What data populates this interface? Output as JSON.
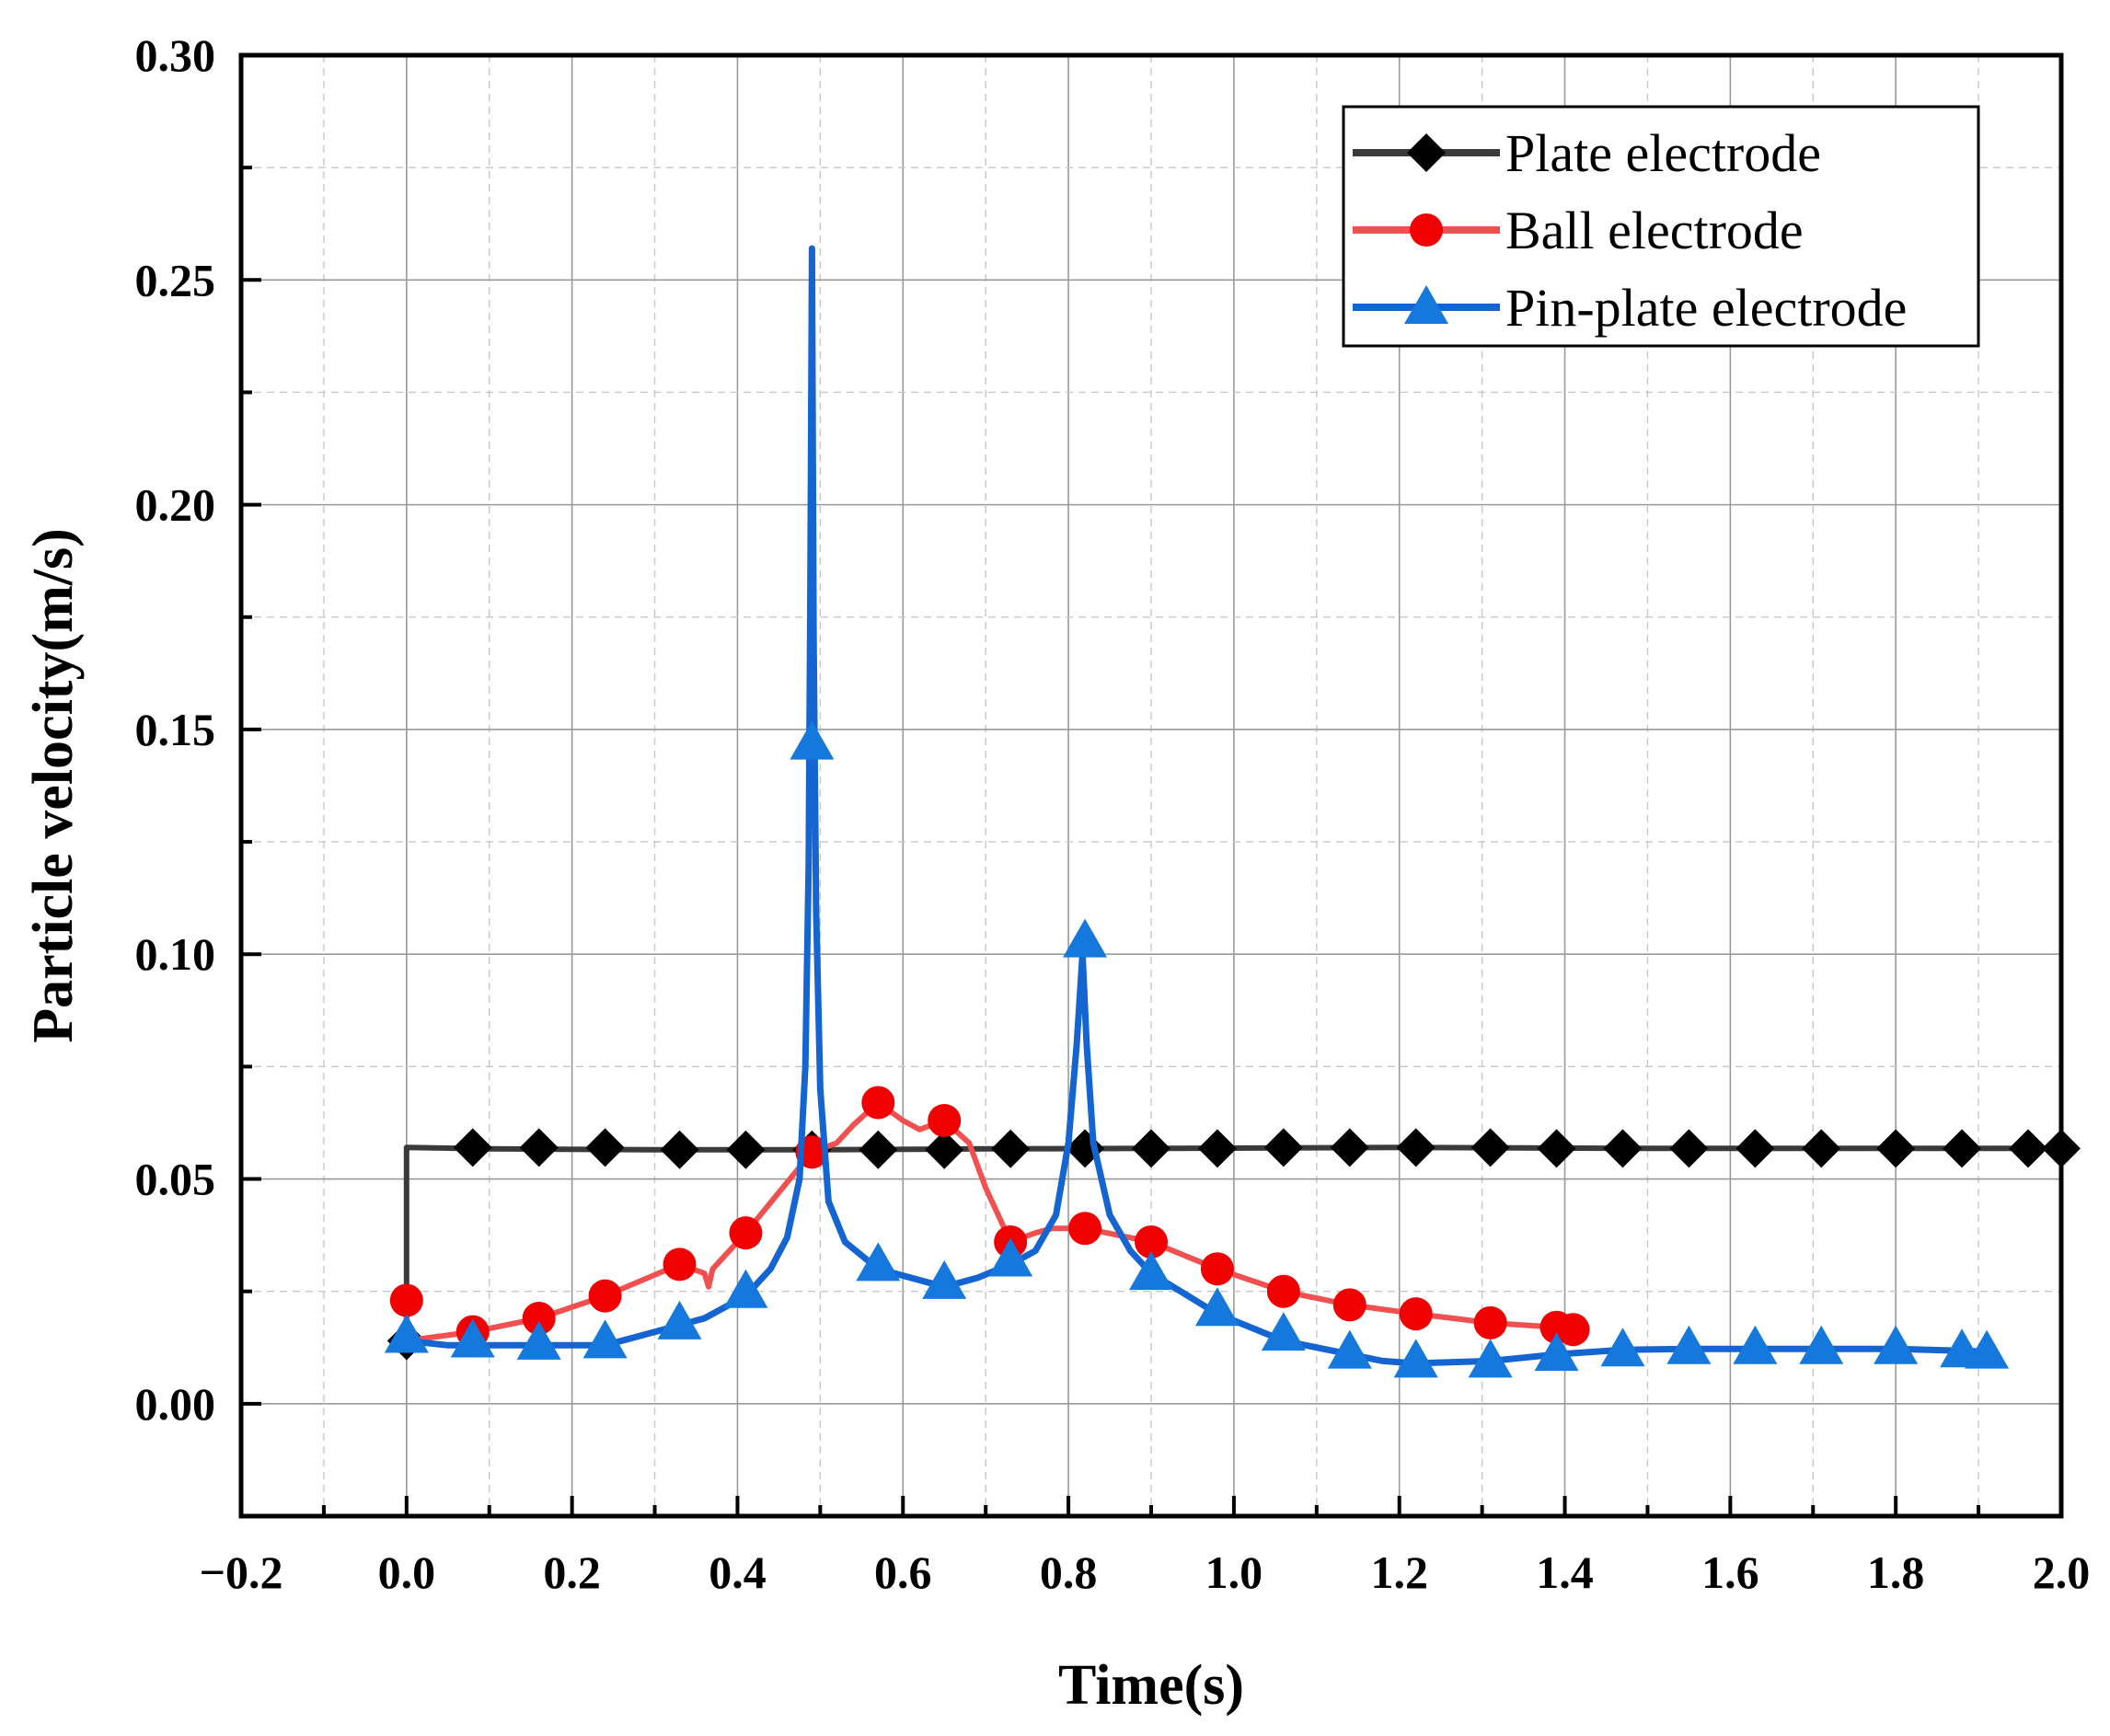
{
  "chart_data": {
    "type": "line",
    "title": "",
    "xlabel": "Time(s)",
    "ylabel": "Particle velocity(m/s)",
    "xlim": [
      -0.2,
      2.0
    ],
    "ylim": [
      -0.025,
      0.3
    ],
    "grid": true,
    "legend_position": "top-right",
    "x_ticks": [
      -0.2,
      0.0,
      0.2,
      0.4,
      0.6,
      0.8,
      1.0,
      1.2,
      1.4,
      1.6,
      1.8,
      2.0
    ],
    "x_tick_labels": [
      "−0.2",
      "0.0",
      "0.2",
      "0.4",
      "0.6",
      "0.8",
      "1.0",
      "1.2",
      "1.4",
      "1.6",
      "1.8",
      "2.0"
    ],
    "y_ticks": [
      0.0,
      0.05,
      0.1,
      0.15,
      0.2,
      0.25,
      0.3
    ],
    "y_tick_labels": [
      "0.00",
      "0.05",
      "0.10",
      "0.15",
      "0.20",
      "0.25",
      "0.30"
    ],
    "series": [
      {
        "name": "Plate electrode",
        "color": "#3a3a3a",
        "marker": "diamond",
        "marker_color": "#000000",
        "line": [
          [
            0.0,
            0.014
          ],
          [
            0.0,
            0.057
          ],
          [
            0.1,
            0.0567
          ],
          [
            0.3,
            0.0565
          ],
          [
            0.5,
            0.0565
          ],
          [
            0.7,
            0.0567
          ],
          [
            0.9,
            0.0568
          ],
          [
            1.2,
            0.057
          ],
          [
            1.5,
            0.0568
          ],
          [
            1.8,
            0.0568
          ],
          [
            2.0,
            0.0568
          ]
        ],
        "markers": [
          [
            0.0,
            0.014
          ],
          [
            0.08,
            0.057
          ],
          [
            0.16,
            0.057
          ],
          [
            0.24,
            0.057
          ],
          [
            0.33,
            0.0565
          ],
          [
            0.41,
            0.0565
          ],
          [
            0.49,
            0.0565
          ],
          [
            0.57,
            0.0565
          ],
          [
            0.65,
            0.0565
          ],
          [
            0.73,
            0.0567
          ],
          [
            0.82,
            0.0568
          ],
          [
            0.9,
            0.0568
          ],
          [
            0.98,
            0.0568
          ],
          [
            1.06,
            0.057
          ],
          [
            1.14,
            0.057
          ],
          [
            1.22,
            0.057
          ],
          [
            1.31,
            0.057
          ],
          [
            1.39,
            0.0568
          ],
          [
            1.47,
            0.0568
          ],
          [
            1.55,
            0.0568
          ],
          [
            1.63,
            0.0568
          ],
          [
            1.71,
            0.0568
          ],
          [
            1.8,
            0.0568
          ],
          [
            1.88,
            0.0568
          ],
          [
            1.96,
            0.0568
          ],
          [
            2.0,
            0.0568
          ]
        ]
      },
      {
        "name": "Ball electrode",
        "color": "#f05050",
        "marker": "circle",
        "marker_color": "#f00000",
        "line": [
          [
            0.0,
            0.023
          ],
          [
            0.0,
            0.014
          ],
          [
            0.08,
            0.016
          ],
          [
            0.16,
            0.019
          ],
          [
            0.24,
            0.024
          ],
          [
            0.33,
            0.031
          ],
          [
            0.36,
            0.029
          ],
          [
            0.365,
            0.026
          ],
          [
            0.37,
            0.03
          ],
          [
            0.41,
            0.038
          ],
          [
            0.49,
            0.056
          ],
          [
            0.52,
            0.058
          ],
          [
            0.54,
            0.062
          ],
          [
            0.57,
            0.067
          ],
          [
            0.6,
            0.063
          ],
          [
            0.62,
            0.061
          ],
          [
            0.65,
            0.063
          ],
          [
            0.68,
            0.058
          ],
          [
            0.7,
            0.048
          ],
          [
            0.73,
            0.036
          ],
          [
            0.76,
            0.038
          ],
          [
            0.78,
            0.039
          ],
          [
            0.82,
            0.039
          ],
          [
            0.9,
            0.036
          ],
          [
            0.98,
            0.03
          ],
          [
            1.06,
            0.025
          ],
          [
            1.14,
            0.022
          ],
          [
            1.22,
            0.02
          ],
          [
            1.31,
            0.018
          ],
          [
            1.39,
            0.017
          ],
          [
            1.41,
            0.0165
          ]
        ],
        "markers": [
          [
            0.0,
            0.023
          ],
          [
            0.08,
            0.016
          ],
          [
            0.16,
            0.019
          ],
          [
            0.24,
            0.024
          ],
          [
            0.33,
            0.031
          ],
          [
            0.41,
            0.038
          ],
          [
            0.49,
            0.056
          ],
          [
            0.57,
            0.067
          ],
          [
            0.65,
            0.063
          ],
          [
            0.73,
            0.036
          ],
          [
            0.82,
            0.039
          ],
          [
            0.9,
            0.036
          ],
          [
            0.98,
            0.03
          ],
          [
            1.06,
            0.025
          ],
          [
            1.14,
            0.022
          ],
          [
            1.22,
            0.02
          ],
          [
            1.31,
            0.018
          ],
          [
            1.39,
            0.017
          ],
          [
            1.41,
            0.0165
          ]
        ]
      },
      {
        "name": "Pin-plate electrode",
        "color": "#1464d2",
        "marker": "triangle",
        "marker_color": "#1478dc",
        "line": [
          [
            0.0,
            0.014
          ],
          [
            0.05,
            0.013
          ],
          [
            0.16,
            0.013
          ],
          [
            0.24,
            0.013
          ],
          [
            0.3,
            0.016
          ],
          [
            0.36,
            0.019
          ],
          [
            0.41,
            0.024
          ],
          [
            0.44,
            0.03
          ],
          [
            0.46,
            0.037
          ],
          [
            0.475,
            0.05
          ],
          [
            0.482,
            0.075
          ],
          [
            0.486,
            0.12
          ],
          [
            0.488,
            0.18
          ],
          [
            0.49,
            0.257
          ],
          [
            0.492,
            0.17
          ],
          [
            0.495,
            0.11
          ],
          [
            0.5,
            0.07
          ],
          [
            0.51,
            0.045
          ],
          [
            0.53,
            0.036
          ],
          [
            0.57,
            0.03
          ],
          [
            0.65,
            0.026
          ],
          [
            0.69,
            0.028
          ],
          [
            0.73,
            0.031
          ],
          [
            0.76,
            0.034
          ],
          [
            0.785,
            0.042
          ],
          [
            0.8,
            0.058
          ],
          [
            0.81,
            0.08
          ],
          [
            0.817,
            0.1
          ],
          [
            0.822,
            0.08
          ],
          [
            0.83,
            0.058
          ],
          [
            0.85,
            0.042
          ],
          [
            0.875,
            0.034
          ],
          [
            0.9,
            0.029
          ],
          [
            0.98,
            0.02
          ],
          [
            1.06,
            0.014
          ],
          [
            1.14,
            0.011
          ],
          [
            1.18,
            0.0095
          ],
          [
            1.22,
            0.009
          ],
          [
            1.31,
            0.0095
          ],
          [
            1.39,
            0.011
          ],
          [
            1.47,
            0.012
          ],
          [
            1.55,
            0.0122
          ],
          [
            1.63,
            0.0122
          ],
          [
            1.71,
            0.0122
          ],
          [
            1.8,
            0.0122
          ],
          [
            1.88,
            0.0118
          ],
          [
            1.92,
            0.0115
          ]
        ],
        "markers": [
          [
            0.0,
            0.015
          ],
          [
            0.08,
            0.014
          ],
          [
            0.16,
            0.0135
          ],
          [
            0.24,
            0.0138
          ],
          [
            0.33,
            0.018
          ],
          [
            0.41,
            0.025
          ],
          [
            0.49,
            0.147
          ],
          [
            0.57,
            0.031
          ],
          [
            0.65,
            0.027
          ],
          [
            0.73,
            0.032
          ],
          [
            0.82,
            0.103
          ],
          [
            0.9,
            0.029
          ],
          [
            0.98,
            0.021
          ],
          [
            1.06,
            0.0155
          ],
          [
            1.14,
            0.0115
          ],
          [
            1.22,
            0.0095
          ],
          [
            1.31,
            0.0095
          ],
          [
            1.39,
            0.011
          ],
          [
            1.47,
            0.012
          ],
          [
            1.55,
            0.0125
          ],
          [
            1.63,
            0.0125
          ],
          [
            1.71,
            0.0125
          ],
          [
            1.8,
            0.0125
          ],
          [
            1.88,
            0.0118
          ],
          [
            1.91,
            0.0115
          ]
        ]
      }
    ]
  }
}
